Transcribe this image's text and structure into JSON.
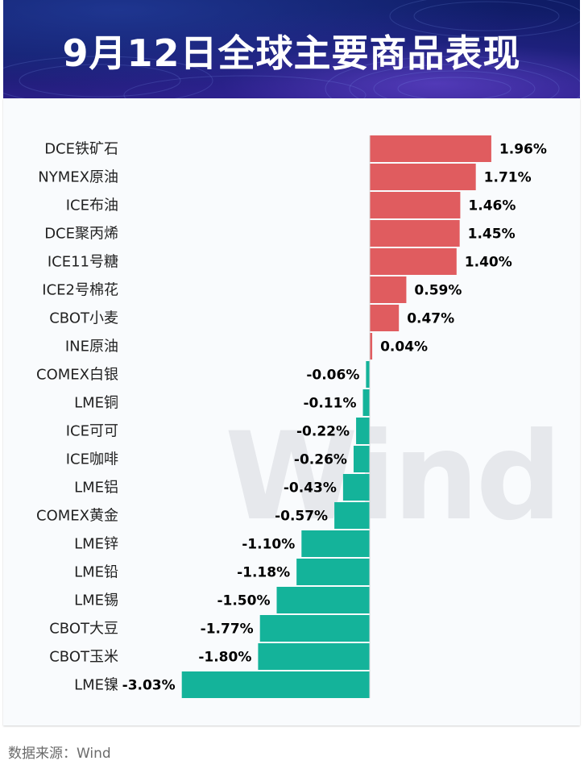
{
  "title": "9月12日全球主要商品表现",
  "source": "数据来源：Wind",
  "watermark": "Wind",
  "colors": {
    "positive": "#e05c5f",
    "negative": "#14b39a",
    "label": "#222222",
    "value": "#000000"
  },
  "chart_data": {
    "type": "bar",
    "orientation": "horizontal",
    "unit": "%",
    "categories": [
      "DCE铁矿石",
      "NYMEX原油",
      "ICE布油",
      "DCE聚丙烯",
      "ICE11号糖",
      "ICE2号棉花",
      "CBOT小麦",
      "INE原油",
      "COMEX白银",
      "LME铜",
      "ICE可可",
      "ICE咖啡",
      "LME铝",
      "COMEX黄金",
      "LME锌",
      "LME铅",
      "LME锡",
      "CBOT大豆",
      "CBOT玉米",
      "LME镍"
    ],
    "values": [
      1.96,
      1.71,
      1.46,
      1.45,
      1.4,
      0.59,
      0.47,
      0.04,
      -0.06,
      -0.11,
      -0.22,
      -0.26,
      -0.43,
      -0.57,
      -1.1,
      -1.18,
      -1.5,
      -1.77,
      -1.8,
      -3.03
    ],
    "labels": [
      "1.96%",
      "1.71%",
      "1.46%",
      "1.45%",
      "1.40%",
      "0.59%",
      "0.47%",
      "0.04%",
      "-0.06%",
      "-0.11%",
      "-0.22%",
      "-0.26%",
      "-0.43%",
      "-0.57%",
      "-1.10%",
      "-1.18%",
      "-1.50%",
      "-1.77%",
      "-1.80%",
      "-3.03%"
    ]
  }
}
